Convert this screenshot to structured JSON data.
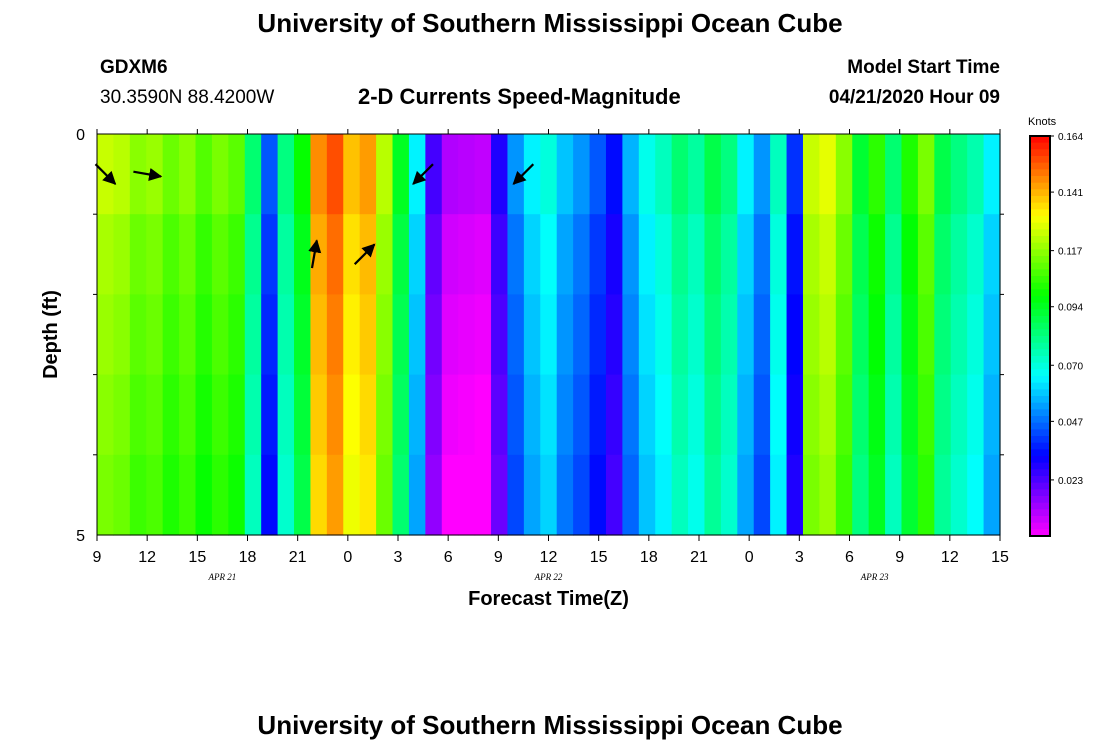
{
  "page": {
    "title_top": "University of Southern Mississippi Ocean Cube",
    "title_bottom": "University of Southern Mississippi Ocean Cube",
    "station": "GDXM6",
    "location": "30.3590N 88.4200W",
    "product": "2-D Currents Speed-Magnitude",
    "model_label": "Model Start Time",
    "model_time": "04/21/2020 Hour 09"
  },
  "chart_data": {
    "type": "heatmap",
    "title": "2-D Currents Speed-Magnitude",
    "xlabel": "Forecast Time(Z)",
    "ylabel": "Depth (ft)",
    "xlim": [
      0,
      54
    ],
    "ylim": [
      0,
      5
    ],
    "x_tick_labels": [
      "9",
      "12",
      "15",
      "18",
      "21",
      "0",
      "3",
      "6",
      "9",
      "12",
      "15",
      "18",
      "21",
      "0",
      "3",
      "6",
      "9",
      "12",
      "15"
    ],
    "date_labels": [
      {
        "text": "APR 21",
        "x": 7.5
      },
      {
        "text": "APR 22",
        "x": 27
      },
      {
        "text": "APR 23",
        "x": 46.5
      }
    ],
    "y_tick_labels": [
      "0",
      "5"
    ],
    "depth_layers": 5,
    "colorbar": {
      "title": "Knots",
      "min": 0.0,
      "max": 0.164,
      "tick_labels": [
        "0.164",
        "0.141",
        "0.117",
        "0.094",
        "0.070",
        "0.047",
        "0.023"
      ],
      "ticks": [
        0.164,
        0.141,
        0.117,
        0.094,
        0.07,
        0.047,
        0.023
      ]
    },
    "speed_profile_knots": [
      0.12,
      0.118,
      0.112,
      0.114,
      0.108,
      0.112,
      0.105,
      0.11,
      0.106,
      0.08,
      0.04,
      0.078,
      0.095,
      0.142,
      0.15,
      0.135,
      0.14,
      0.118,
      0.09,
      0.06,
      0.02,
      0.006,
      0.005,
      0.004,
      0.025,
      0.048,
      0.06,
      0.066,
      0.054,
      0.048,
      0.04,
      0.03,
      0.052,
      0.064,
      0.07,
      0.08,
      0.074,
      0.085,
      0.078,
      0.06,
      0.048,
      0.07,
      0.035,
      0.12,
      0.124,
      0.112,
      0.088,
      0.1,
      0.08,
      0.098,
      0.11,
      0.085,
      0.078,
      0.072,
      0.06
    ],
    "layer_offsets_knots": [
      0.004,
      0.0,
      -0.002,
      -0.004,
      -0.006
    ],
    "vectors": [
      {
        "x": 0.5,
        "layer": 0,
        "dir": 135,
        "speed": 0.12
      },
      {
        "x": 3,
        "layer": 0,
        "dir": 100,
        "speed": 0.11
      },
      {
        "x": 13,
        "layer": 1,
        "dir": 10,
        "speed": 0.14
      },
      {
        "x": 16,
        "layer": 1,
        "dir": 45,
        "speed": 0.08
      },
      {
        "x": 19.5,
        "layer": 0,
        "dir": 225,
        "speed": 0.02
      },
      {
        "x": 25.5,
        "layer": 0,
        "dir": 225,
        "speed": 0.05
      }
    ]
  }
}
